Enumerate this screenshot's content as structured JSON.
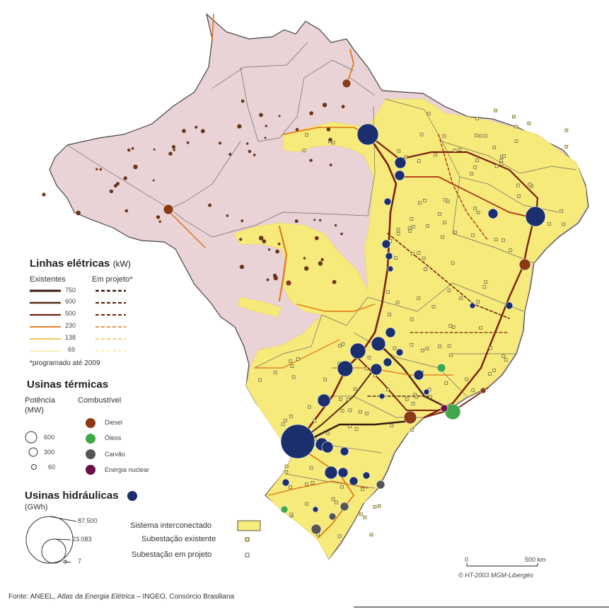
{
  "legend": {
    "lines_title": "Linhas elétricas",
    "lines_unit": "(kW)",
    "existing_label": "Existentes",
    "planned_label": "Em projeto*",
    "voltages": [
      "750",
      "600",
      "500",
      "230",
      "138",
      "69"
    ],
    "voltage_colors": [
      "#3a1a10",
      "#5a2a18",
      "#7a2010",
      "#e07010",
      "#f0b020",
      "#f6e070"
    ],
    "planned_note": "*programado até 2009",
    "thermal_title": "Usinas térmicas",
    "power_label_1": "Potência",
    "power_label_2": "(MW)",
    "fuel_label": "Combustível",
    "power_values": [
      "600",
      "300",
      "60"
    ],
    "fuels": [
      {
        "name": "Diesel",
        "color": "#8a3a14"
      },
      {
        "name": "Óleos",
        "color": "#3fa84a"
      },
      {
        "name": "Carvão",
        "color": "#555555"
      },
      {
        "name": "Energia nuclear",
        "color": "#6a1048"
      }
    ],
    "hydro_title": "Usinas hidráulicas",
    "hydro_unit": "(GWh)",
    "hydro_color": "#1b2f6e",
    "hydro_values": [
      "87.500",
      "23.083",
      "7"
    ],
    "system_label": "Sistema interconectado",
    "system_color": "#f6ea7a",
    "substation_existing": "Subestação existente",
    "substation_planned": "Subestação em projeto"
  },
  "scale": {
    "zero": "0",
    "max": "500 km"
  },
  "credit": "© HT-2003 MGM-Libergéo",
  "source": {
    "prefix": "Fonte: ANEEL, ",
    "title": "Atlas da Energia Elétrica",
    "suffix": " – INGEO, Consórcio Brasiliana"
  },
  "colors": {
    "land": "#e9d3d6",
    "border": "#444444",
    "state_line": "#6a6a6a"
  }
}
